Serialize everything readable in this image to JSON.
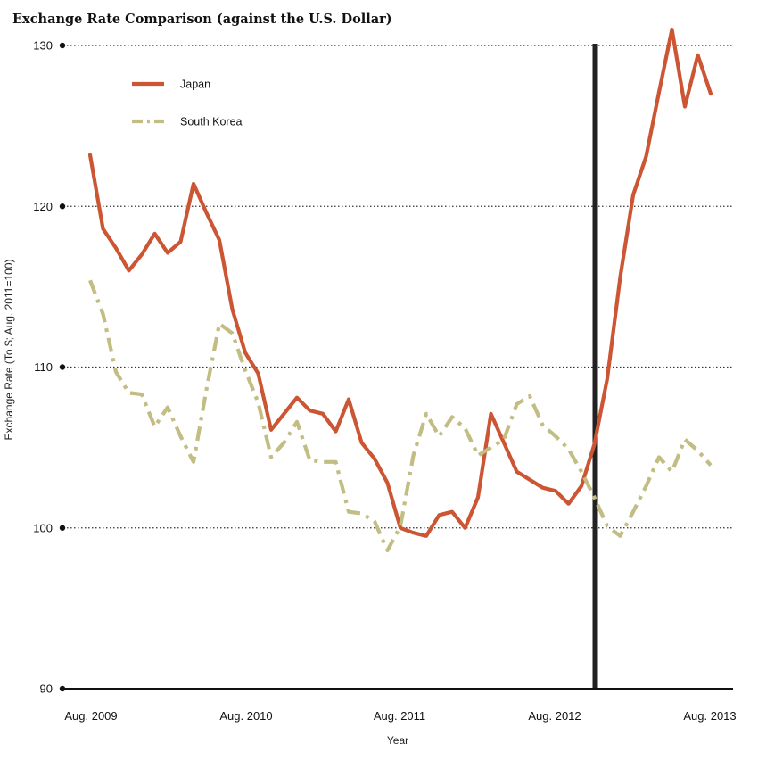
{
  "chart_data": {
    "type": "line",
    "title": "Exchange Rate Comparison (against the U.S. Dollar)",
    "xlabel": "Year",
    "ylabel": "Exchange Rate (To $; Aug. 2011=100)",
    "ylim": [
      90,
      130
    ],
    "yticks": [
      "90",
      "100",
      "110",
      "120",
      "130"
    ],
    "xticks": [
      "Aug. 2009",
      "Aug. 2010",
      "Aug. 2011",
      "Aug. 2012",
      "Aug. 2013"
    ],
    "grid": true,
    "legend_position": "top-left",
    "marker_line_date": "Nov. 2012",
    "x": [
      "Aug. 2009",
      "Sep. 2009",
      "Oct. 2009",
      "Nov. 2009",
      "Dec. 2009",
      "Jan. 2010",
      "Feb. 2010",
      "Mar. 2010",
      "Apr. 2010",
      "May 2010",
      "Jun. 2010",
      "Jul. 2010",
      "Aug. 2010",
      "Sep. 2010",
      "Oct. 2010",
      "Nov. 2010",
      "Dec. 2010",
      "Jan. 2011",
      "Feb. 2011",
      "Mar. 2011",
      "Apr. 2011",
      "May 2011",
      "Jun. 2011",
      "Jul. 2011",
      "Aug. 2011",
      "Sep. 2011",
      "Oct. 2011",
      "Nov. 2011",
      "Dec. 2011",
      "Jan. 2012",
      "Feb. 2012",
      "Mar. 2012",
      "Apr. 2012",
      "May 2012",
      "Jun. 2012",
      "Jul. 2012",
      "Aug. 2012",
      "Sep. 2012",
      "Oct. 2012",
      "Nov. 2012",
      "Dec. 2012",
      "Jan. 2013",
      "Feb. 2013",
      "Mar. 2013",
      "Apr. 2013",
      "May 2013",
      "Jun. 2013",
      "Jul. 2013",
      "Aug. 2013"
    ],
    "series": [
      {
        "name": "Japan",
        "color": "#cc5533",
        "style": "solid",
        "values": [
          123.2,
          118.6,
          117.4,
          116.0,
          117.0,
          118.3,
          117.1,
          117.8,
          121.4,
          119.6,
          117.9,
          113.6,
          110.9,
          109.6,
          106.1,
          107.1,
          108.1,
          107.3,
          107.1,
          106.0,
          108.0,
          105.3,
          104.3,
          102.8,
          100.0,
          99.7,
          99.5,
          100.8,
          101.0,
          100.0,
          101.9,
          107.1,
          105.3,
          103.5,
          103.0,
          102.5,
          102.3,
          101.5,
          102.6,
          105.2,
          109.3,
          115.6,
          120.7,
          123.1,
          127.1,
          131.0,
          126.2,
          129.4,
          127.0
        ]
      },
      {
        "name": "South Korea",
        "color": "#c2bd82",
        "style": "dash-dot",
        "values": [
          115.4,
          113.3,
          109.7,
          108.4,
          108.3,
          106.3,
          107.5,
          105.7,
          104.1,
          108.6,
          112.7,
          112.1,
          109.8,
          107.8,
          104.4,
          105.3,
          106.6,
          104.2,
          104.1,
          104.1,
          101.0,
          100.9,
          100.4,
          98.6,
          100.1,
          104.5,
          107.1,
          105.7,
          106.9,
          106.2,
          104.5,
          105.0,
          105.5,
          107.7,
          108.2,
          106.4,
          105.7,
          104.9,
          103.5,
          101.9,
          100.1,
          99.5,
          101.0,
          102.6,
          104.4,
          103.5,
          105.5,
          104.8,
          103.9
        ]
      }
    ]
  }
}
